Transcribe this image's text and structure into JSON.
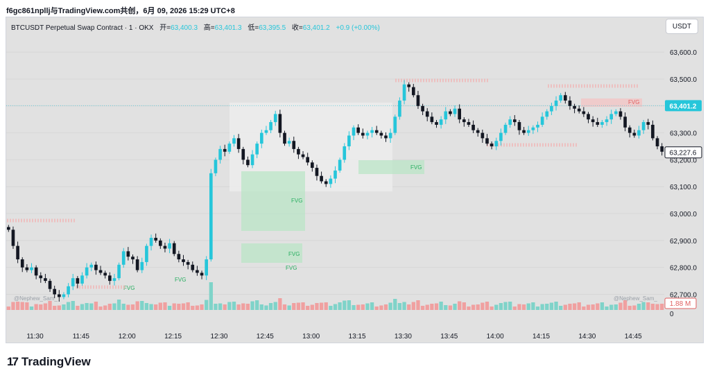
{
  "header": {
    "text": "f6gc861npllj与TradingView.com共创，6月 09, 2026 15:29 UTC+8"
  },
  "legend": {
    "symbol": "BTCUSDT Perpetual Swap Contract · 1 · OKX",
    "open_label": "开=",
    "open": "63,400.3",
    "high_label": "高=",
    "high": "63,401.3",
    "low_label": "低=",
    "low": "63,395.5",
    "close_label": "收=",
    "close": "63,401.2",
    "change": "+0.9 (+0.00%)"
  },
  "currency_button": {
    "label": "USDT"
  },
  "brand": {
    "logo_text": "TradingView",
    "logo_mark": "17"
  },
  "colors": {
    "up": "#26c6da",
    "down": "#131722",
    "vol_up": "#7fd3c9",
    "vol_down": "#f0a0a0",
    "fvg_green": "#b8e6c4",
    "fvg_red": "#f5c2c2",
    "price_badge": "#26c6da"
  },
  "chart_data": {
    "type": "candlestick",
    "symbol": "BTCUSDT Perpetual Swap Contract",
    "interval": "1",
    "exchange": "OKX",
    "x_ticks": [
      "11:30",
      "11:45",
      "12:00",
      "12:15",
      "12:30",
      "12:45",
      "13:00",
      "13:15",
      "13:30",
      "13:45",
      "14:00",
      "14:15",
      "14:30",
      "14:45"
    ],
    "y_ticks": [
      "63,600.0",
      "63,500.0",
      "63,400.0",
      "63,300.0",
      "63,200.0",
      "63,100.0",
      "63,000.0",
      "62,900.0",
      "62,800.0",
      "62,700.0"
    ],
    "y_range": [
      62660,
      63670
    ],
    "last_price": {
      "value": 63401.2,
      "label": "63,401.2"
    },
    "current_price": {
      "value": 63227.6,
      "label": "63,227.6"
    },
    "volume_label": "1.88 M",
    "volume_zero_label": "0",
    "watermarks": [
      "@Nephew_Sam_",
      "@Nephew_Sam_"
    ],
    "fvg_label": "FVG",
    "close_series": [
      62940,
      62880,
      62830,
      62800,
      62790,
      62800,
      62770,
      62760,
      62750,
      62720,
      62700,
      62690,
      62700,
      62730,
      62760,
      62740,
      62770,
      62800,
      62810,
      62790,
      62780,
      62770,
      62750,
      62760,
      62810,
      62860,
      62840,
      62830,
      62790,
      62820,
      62880,
      62910,
      62900,
      62880,
      62870,
      62890,
      62850,
      62830,
      62820,
      62810,
      62790,
      62780,
      62770,
      62830,
      63150,
      63200,
      63240,
      63230,
      63260,
      63280,
      63240,
      63200,
      63180,
      63220,
      63260,
      63300,
      63310,
      63340,
      63370,
      63300,
      63260,
      63270,
      63240,
      63220,
      63210,
      63190,
      63170,
      63140,
      63120,
      63110,
      63130,
      63160,
      63200,
      63250,
      63290,
      63320,
      63300,
      63290,
      63300,
      63310,
      63300,
      63290,
      63280,
      63300,
      63360,
      63420,
      63480,
      63470,
      63440,
      63400,
      63380,
      63360,
      63340,
      63330,
      63350,
      63380,
      63370,
      63390,
      63350,
      63340,
      63330,
      63310,
      63300,
      63280,
      63260,
      63250,
      63270,
      63300,
      63330,
      63350,
      63340,
      63310,
      63300,
      63310,
      63320,
      63330,
      63360,
      63380,
      63400,
      63420,
      63440,
      63420,
      63400,
      63390,
      63380,
      63370,
      63350,
      63340,
      63330,
      63340,
      63350,
      63370,
      63380,
      63360,
      63320,
      63300,
      63290,
      63310,
      63340,
      63330,
      63280,
      63250,
      63230
    ],
    "legend": {
      "open": 63400.3,
      "high": 63401.3,
      "low": 63395.5,
      "close": 63401.2,
      "change": 0.9,
      "change_pct": 0.0
    }
  }
}
